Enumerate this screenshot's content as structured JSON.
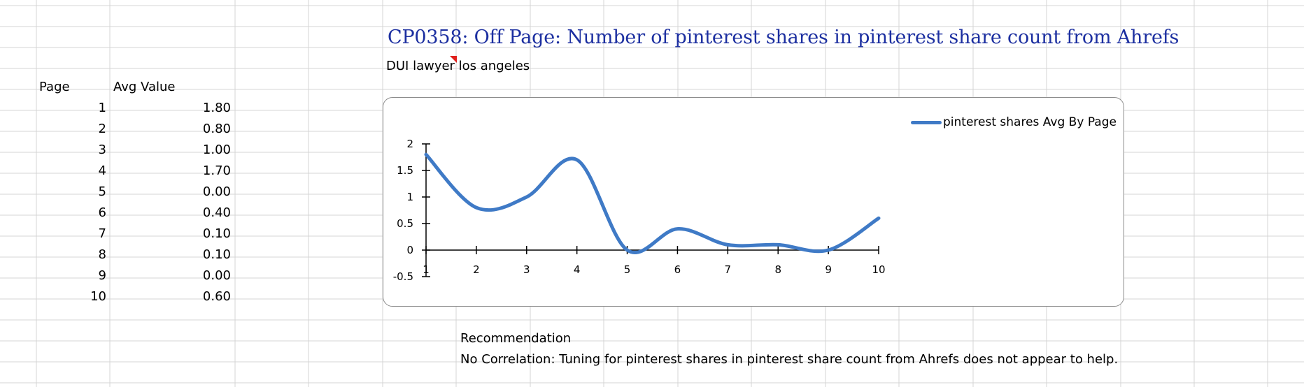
{
  "sheet": {
    "title": "CP0358: Off Page: Number of pinterest shares in pinterest share count from Ahrefs",
    "keyword": "DUI lawyer los angeles"
  },
  "table": {
    "headers": [
      "Page",
      "Avg Value"
    ],
    "rows": [
      {
        "page": "1",
        "avg": "1.80"
      },
      {
        "page": "2",
        "avg": "0.80"
      },
      {
        "page": "3",
        "avg": "1.00"
      },
      {
        "page": "4",
        "avg": "1.70"
      },
      {
        "page": "5",
        "avg": "0.00"
      },
      {
        "page": "6",
        "avg": "0.40"
      },
      {
        "page": "7",
        "avg": "0.10"
      },
      {
        "page": "8",
        "avg": "0.10"
      },
      {
        "page": "9",
        "avg": "0.00"
      },
      {
        "page": "10",
        "avg": "0.60"
      }
    ]
  },
  "recommendation": {
    "heading": "Recommendation",
    "text": "No Correlation: Tuning for pinterest shares in pinterest share count from Ahrefs does not appear to help."
  },
  "colors": {
    "series": "#3f7ac6",
    "title": "#1c2fa0",
    "gridline": "#d4d4d4",
    "comment_flag": "#e0201c"
  },
  "chart_data": {
    "type": "line",
    "smooth": true,
    "x": [
      1,
      2,
      3,
      4,
      5,
      6,
      7,
      8,
      9,
      10
    ],
    "series": [
      {
        "name": "pinterest shares Avg By Page",
        "values": [
          1.8,
          0.8,
          1.0,
          1.7,
          0.0,
          0.4,
          0.1,
          0.1,
          0.0,
          0.6
        ]
      }
    ],
    "x_ticks": [
      "1",
      "2",
      "3",
      "4",
      "5",
      "6",
      "7",
      "8",
      "9",
      "10"
    ],
    "y_ticks": [
      "-0.5",
      "0",
      "0.5",
      "1",
      "1.5",
      "2"
    ],
    "ylim": [
      -0.5,
      2
    ],
    "xlim": [
      1,
      10
    ],
    "legend": "top-right",
    "grid": false
  }
}
